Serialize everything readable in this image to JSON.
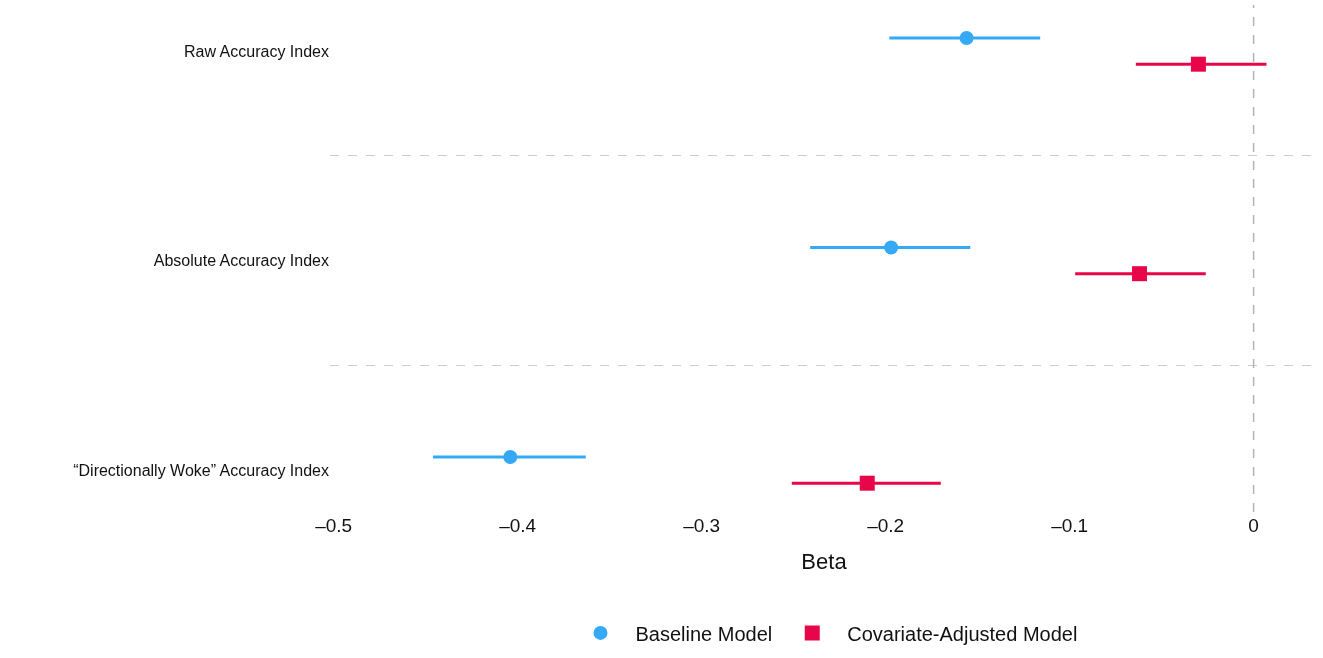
{
  "chart_data": {
    "type": "scatter",
    "orientation": "horizontal",
    "xlabel": "Beta",
    "categories": [
      "Raw Accuracy Index",
      "Absolute Accuracy Index",
      "“Directionally Woke” Accuracy Index"
    ],
    "series": [
      {
        "name": "Baseline Model",
        "color": "#35a9f5",
        "marker": "circle",
        "values": [
          -0.156,
          -0.197,
          -0.404
        ],
        "errors": [
          [
            -0.198,
            -0.116
          ],
          [
            -0.241,
            -0.154
          ],
          [
            -0.446,
            -0.363
          ]
        ]
      },
      {
        "name": "Covariate-Adjusted Model",
        "color": "#e8064b",
        "marker": "square",
        "values": [
          -0.03,
          -0.062,
          -0.21
        ],
        "errors": [
          [
            -0.064,
            0.007
          ],
          [
            -0.097,
            -0.026
          ],
          [
            -0.251,
            -0.17
          ]
        ]
      }
    ],
    "xlim": [
      -0.502,
      0.035
    ],
    "xticks": [
      {
        "value": -0.5,
        "label": "–0.5"
      },
      {
        "value": -0.4,
        "label": "–0.4"
      },
      {
        "value": -0.3,
        "label": "–0.3"
      },
      {
        "value": -0.2,
        "label": "–0.2"
      },
      {
        "value": -0.1,
        "label": "–0.1"
      },
      0
    ],
    "ref_lines": [
      {
        "axis": "x",
        "value": 0,
        "color": "#b3b3b3",
        "line_style": "dashed"
      }
    ],
    "grid": "y",
    "legend": "bottom"
  }
}
